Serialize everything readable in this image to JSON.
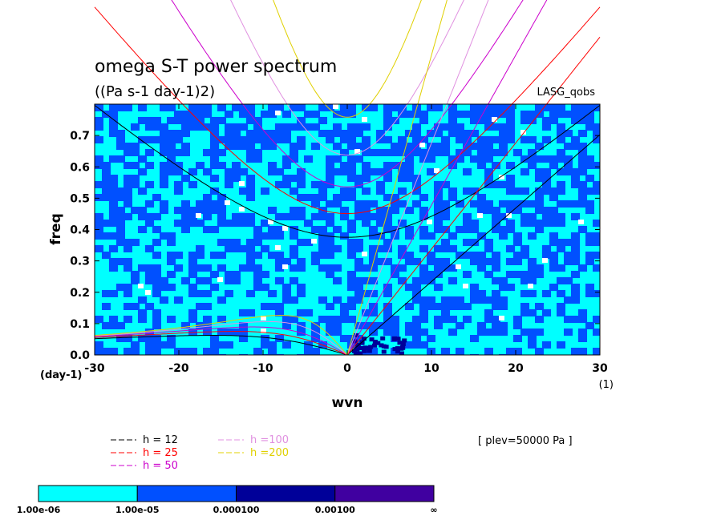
{
  "chart_data": {
    "type": "heatmap",
    "title": "omega S-T power spectrum",
    "subtitle": "((Pa s-1 day-1)2)",
    "dataset_label": "LASG_qobs",
    "xlabel": "wvn",
    "ylabel": "freq",
    "x_unit": "(1)",
    "y_unit": "(day-1)",
    "xlim": [
      -30,
      30
    ],
    "ylim": [
      0,
      0.8
    ],
    "xticks": [
      -30,
      -20,
      -10,
      0,
      10,
      20,
      30
    ],
    "yticks": [
      0.0,
      0.1,
      0.2,
      0.3,
      0.4,
      0.5,
      0.6,
      0.7
    ],
    "level_note": "[ plev=50000 Pa ]",
    "contour_levels": [
      {
        "label": "1.00e-06",
        "color": "#00ffff"
      },
      {
        "label": "1.00e-05",
        "color": "#0050ff"
      },
      {
        "label": "0.000100",
        "color": "#000099"
      },
      {
        "label": "0.00100",
        "color": "#4000a0"
      },
      {
        "label": "∞",
        "color": ""
      }
    ],
    "dispersion_curves": [
      {
        "name": "h = 12",
        "h": 12,
        "color": "#000000"
      },
      {
        "name": "h = 25",
        "h": 25,
        "color": "#ff0000"
      },
      {
        "name": "h = 50",
        "h": 50,
        "color": "#cc00cc"
      },
      {
        "name": "h =100",
        "h": 100,
        "color": "#e090e0"
      },
      {
        "name": "h =200",
        "h": 200,
        "color": "#e0d000"
      }
    ]
  }
}
